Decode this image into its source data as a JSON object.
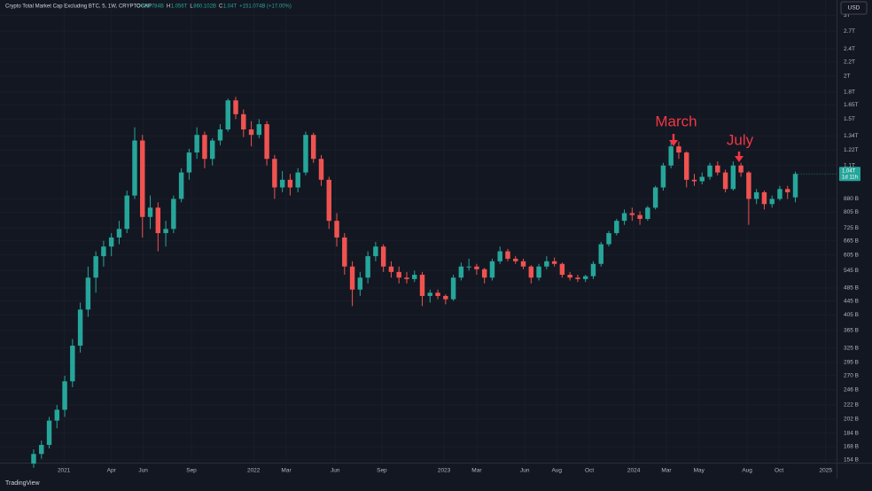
{
  "chart_data": {
    "type": "candlestick",
    "title": "Crypto Total Market Cap Excluding BTC, 5, 1W, CRYPTOCAP",
    "ohlc_labels": [
      "O",
      "888.784B",
      "H",
      "1.056T",
      "L",
      "860.102B",
      "C",
      "1.04T"
    ],
    "change_label": "+151.074B (+17.00%)",
    "currency": "USD",
    "last_price_label": "1.04T",
    "countdown": "1d 11h",
    "brand": "TradingView",
    "annotations": [
      "March",
      "July"
    ],
    "log": true,
    "up_color": "#26a69a",
    "down_color": "#ef5350",
    "ylim": [
      151,
      3325
    ],
    "yticks": [
      {
        "value": 154,
        "label": "154 B"
      },
      {
        "value": 168,
        "label": "168 B"
      },
      {
        "value": 184,
        "label": "184 B"
      },
      {
        "value": 202,
        "label": "202 B"
      },
      {
        "value": 222,
        "label": "222 B"
      },
      {
        "value": 246,
        "label": "246 B"
      },
      {
        "value": 270,
        "label": "270 B"
      },
      {
        "value": 295,
        "label": "295 B"
      },
      {
        "value": 325,
        "label": "325 B"
      },
      {
        "value": 365,
        "label": "365 B"
      },
      {
        "value": 405,
        "label": "405 B"
      },
      {
        "value": 445,
        "label": "445 B"
      },
      {
        "value": 485,
        "label": "485 B"
      },
      {
        "value": 545,
        "label": "545 B"
      },
      {
        "value": 605,
        "label": "605 B"
      },
      {
        "value": 665,
        "label": "665 B"
      },
      {
        "value": 725,
        "label": "725 B"
      },
      {
        "value": 805,
        "label": "805 B"
      },
      {
        "value": 880,
        "label": "880 B"
      },
      {
        "value": 1100,
        "label": "1.1T"
      },
      {
        "value": 1220,
        "label": "1.22T"
      },
      {
        "value": 1340,
        "label": "1.34T"
      },
      {
        "value": 1500,
        "label": "1.5T"
      },
      {
        "value": 1650,
        "label": "1.65T"
      },
      {
        "value": 1800,
        "label": "1.8T"
      },
      {
        "value": 2000,
        "label": "2T"
      },
      {
        "value": 2200,
        "label": "2.2T"
      },
      {
        "value": 2400,
        "label": "2.4T"
      },
      {
        "value": 2700,
        "label": "2.7T"
      },
      {
        "value": 3000,
        "label": "3T"
      }
    ],
    "xlim": [
      -4.33,
      103.3
    ],
    "xticks": [
      {
        "value": 3.9,
        "label": "2021"
      },
      {
        "value": 10.0,
        "label": "Apr"
      },
      {
        "value": 14.1,
        "label": "Jun"
      },
      {
        "value": 20.3,
        "label": "Sep"
      },
      {
        "value": 28.3,
        "label": "2022"
      },
      {
        "value": 32.5,
        "label": "Mar"
      },
      {
        "value": 38.8,
        "label": "Jun"
      },
      {
        "value": 44.8,
        "label": "Sep"
      },
      {
        "value": 52.8,
        "label": "2023"
      },
      {
        "value": 57.0,
        "label": "Mar"
      },
      {
        "value": 63.2,
        "label": "Jun"
      },
      {
        "value": 67.3,
        "label": "Aug"
      },
      {
        "value": 71.5,
        "label": "Oct"
      },
      {
        "value": 77.2,
        "label": "2024"
      },
      {
        "value": 81.4,
        "label": "Mar"
      },
      {
        "value": 85.6,
        "label": "May"
      },
      {
        "value": 91.8,
        "label": "Aug"
      },
      {
        "value": 95.9,
        "label": "Oct"
      },
      {
        "value": 101.9,
        "label": "2025"
      }
    ],
    "candles": [
      [
        150,
        165,
        146,
        160
      ],
      [
        160,
        175,
        155,
        170
      ],
      [
        170,
        205,
        166,
        200
      ],
      [
        200,
        222,
        190,
        215
      ],
      [
        215,
        270,
        205,
        260
      ],
      [
        260,
        345,
        250,
        330
      ],
      [
        330,
        440,
        315,
        420
      ],
      [
        420,
        560,
        400,
        520
      ],
      [
        520,
        620,
        470,
        600
      ],
      [
        600,
        665,
        560,
        640
      ],
      [
        640,
        700,
        600,
        680
      ],
      [
        680,
        760,
        650,
        720
      ],
      [
        720,
        930,
        700,
        900
      ],
      [
        900,
        1420,
        880,
        1300
      ],
      [
        1300,
        1350,
        680,
        780
      ],
      [
        780,
        900,
        720,
        830
      ],
      [
        830,
        860,
        620,
        700
      ],
      [
        700,
        760,
        640,
        720
      ],
      [
        720,
        900,
        700,
        880
      ],
      [
        880,
        1080,
        860,
        1050
      ],
      [
        1050,
        1230,
        1000,
        1200
      ],
      [
        1200,
        1420,
        1150,
        1350
      ],
      [
        1350,
        1380,
        1080,
        1150
      ],
      [
        1150,
        1320,
        1100,
        1300
      ],
      [
        1300,
        1450,
        1260,
        1400
      ],
      [
        1400,
        1720,
        1380,
        1700
      ],
      [
        1700,
        1740,
        1500,
        1550
      ],
      [
        1550,
        1600,
        1330,
        1400
      ],
      [
        1400,
        1480,
        1250,
        1350
      ],
      [
        1350,
        1500,
        1320,
        1450
      ],
      [
        1450,
        1480,
        1100,
        1150
      ],
      [
        1150,
        1180,
        880,
        950
      ],
      [
        950,
        1060,
        920,
        1000
      ],
      [
        1000,
        1040,
        900,
        950
      ],
      [
        950,
        1080,
        920,
        1050
      ],
      [
        1050,
        1380,
        1030,
        1350
      ],
      [
        1350,
        1370,
        1120,
        1150
      ],
      [
        1150,
        1180,
        960,
        1000
      ],
      [
        1000,
        1020,
        720,
        760
      ],
      [
        760,
        800,
        640,
        680
      ],
      [
        680,
        700,
        530,
        560
      ],
      [
        560,
        580,
        430,
        480
      ],
      [
        480,
        540,
        460,
        520
      ],
      [
        520,
        620,
        500,
        600
      ],
      [
        600,
        660,
        580,
        640
      ],
      [
        640,
        650,
        540,
        560
      ],
      [
        560,
        580,
        520,
        540
      ],
      [
        540,
        560,
        500,
        520
      ],
      [
        520,
        540,
        500,
        515
      ],
      [
        515,
        545,
        505,
        530
      ],
      [
        530,
        540,
        430,
        460
      ],
      [
        460,
        480,
        440,
        470
      ],
      [
        470,
        480,
        450,
        460
      ],
      [
        460,
        465,
        435,
        450
      ],
      [
        450,
        530,
        445,
        520
      ],
      [
        520,
        575,
        510,
        560
      ],
      [
        560,
        590,
        545,
        560
      ],
      [
        560,
        570,
        530,
        550
      ],
      [
        550,
        555,
        500,
        520
      ],
      [
        520,
        590,
        510,
        580
      ],
      [
        580,
        640,
        570,
        620
      ],
      [
        620,
        630,
        580,
        590
      ],
      [
        590,
        600,
        570,
        580
      ],
      [
        580,
        590,
        550,
        560
      ],
      [
        560,
        565,
        500,
        520
      ],
      [
        520,
        570,
        510,
        560
      ],
      [
        560,
        600,
        550,
        580
      ],
      [
        580,
        595,
        560,
        570
      ],
      [
        570,
        575,
        520,
        530
      ],
      [
        530,
        540,
        510,
        520
      ],
      [
        520,
        530,
        505,
        515
      ],
      [
        515,
        530,
        505,
        525
      ],
      [
        525,
        580,
        515,
        570
      ],
      [
        570,
        660,
        560,
        650
      ],
      [
        650,
        710,
        640,
        700
      ],
      [
        700,
        770,
        690,
        760
      ],
      [
        760,
        820,
        740,
        800
      ],
      [
        800,
        830,
        760,
        790
      ],
      [
        790,
        810,
        740,
        770
      ],
      [
        770,
        840,
        760,
        830
      ],
      [
        830,
        960,
        820,
        950
      ],
      [
        950,
        1120,
        930,
        1100
      ],
      [
        1100,
        1300,
        1080,
        1250
      ],
      [
        1250,
        1290,
        1150,
        1200
      ],
      [
        1200,
        1210,
        950,
        1000
      ],
      [
        1000,
        1040,
        960,
        990
      ],
      [
        990,
        1050,
        970,
        1020
      ],
      [
        1020,
        1120,
        1000,
        1100
      ],
      [
        1100,
        1130,
        1030,
        1050
      ],
      [
        1050,
        1070,
        920,
        940
      ],
      [
        940,
        1130,
        930,
        1100
      ],
      [
        1100,
        1120,
        1020,
        1050
      ],
      [
        1050,
        1060,
        740,
        880
      ],
      [
        880,
        940,
        850,
        920
      ],
      [
        920,
        930,
        820,
        850
      ],
      [
        850,
        900,
        830,
        880
      ],
      [
        880,
        960,
        870,
        940
      ],
      [
        940,
        960,
        880,
        920
      ],
      [
        888.784,
        1056,
        860.102,
        1040
      ]
    ]
  }
}
